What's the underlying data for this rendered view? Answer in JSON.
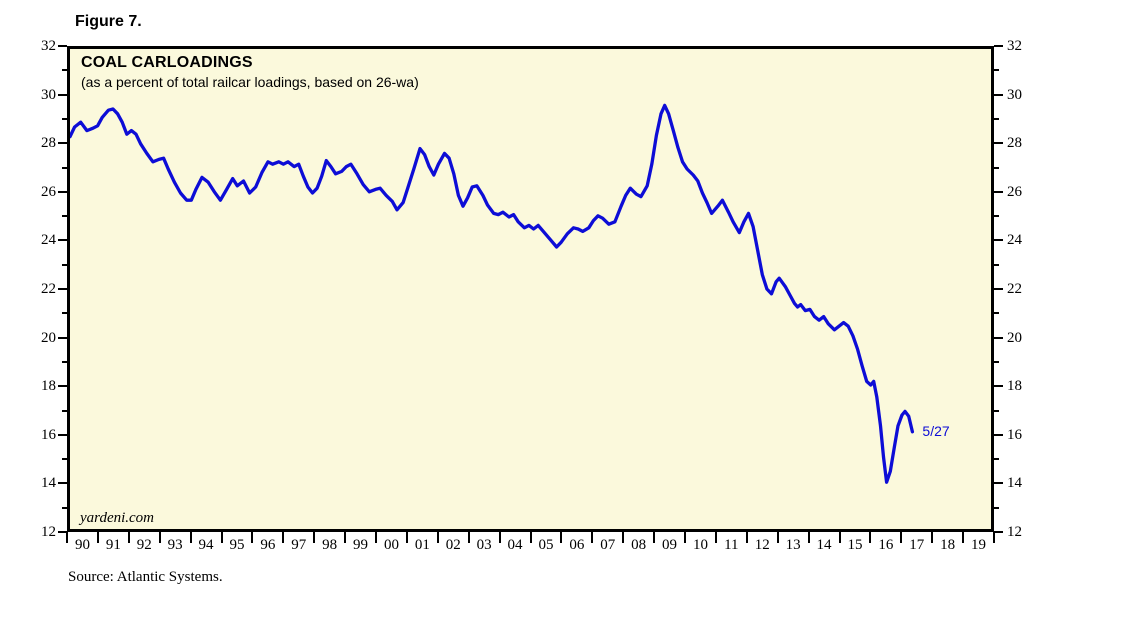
{
  "figure": {
    "label": "Figure 7."
  },
  "chart": {
    "title": "COAL CARLOADINGS",
    "subtitle": "(as a percent of total railcar loadings, based on 26-wa)",
    "watermark": "yardeni.com",
    "last_point_label": "5/27",
    "source": "Source: Atlantic Systems.",
    "colors": {
      "line": "#0d0dd6",
      "plot_background": "#fbf9dc",
      "frame": "#000000",
      "text": "#000000"
    }
  },
  "chart_data": {
    "type": "line",
    "title": "COAL CARLOADINGS",
    "subtitle": "(as a percent of total railcar loadings, based on 26-wa)",
    "xlabel": "",
    "ylabel": "",
    "xlim": [
      1990,
      2020
    ],
    "ylim": [
      12,
      32
    ],
    "grid": false,
    "legend_position": "none",
    "y_ticks_major": [
      32,
      30,
      28,
      26,
      24,
      22,
      20,
      18,
      16,
      14,
      12
    ],
    "y_ticks_minor": [
      31,
      29,
      27,
      25,
      23,
      21,
      19,
      17,
      15,
      13
    ],
    "x_tick_years": [
      1990,
      1991,
      1992,
      1993,
      1994,
      1995,
      1996,
      1997,
      1998,
      1999,
      2000,
      2001,
      2002,
      2003,
      2004,
      2005,
      2006,
      2007,
      2008,
      2009,
      2010,
      2011,
      2012,
      2013,
      2014,
      2015,
      2016,
      2017,
      2018,
      2019,
      2020
    ],
    "x_tick_labels": [
      "90",
      "91",
      "92",
      "93",
      "94",
      "95",
      "96",
      "97",
      "98",
      "99",
      "00",
      "01",
      "02",
      "03",
      "04",
      "05",
      "06",
      "07",
      "08",
      "09",
      "10",
      "11",
      "12",
      "13",
      "14",
      "15",
      "16",
      "17",
      "18",
      "19"
    ],
    "annotations": [
      {
        "text": "5/27",
        "x": 2017.44,
        "y": 16.05
      }
    ],
    "series": [
      {
        "name": "Coal carloadings as percent of total railcar loadings (26-week basis)",
        "points": [
          [
            1990.0,
            28.35
          ],
          [
            1990.15,
            28.75
          ],
          [
            1990.35,
            28.95
          ],
          [
            1990.55,
            28.6
          ],
          [
            1990.75,
            28.7
          ],
          [
            1990.9,
            28.8
          ],
          [
            1991.05,
            29.15
          ],
          [
            1991.25,
            29.45
          ],
          [
            1991.4,
            29.5
          ],
          [
            1991.55,
            29.3
          ],
          [
            1991.7,
            28.95
          ],
          [
            1991.85,
            28.45
          ],
          [
            1992.0,
            28.6
          ],
          [
            1992.15,
            28.45
          ],
          [
            1992.3,
            28.05
          ],
          [
            1992.5,
            27.65
          ],
          [
            1992.7,
            27.3
          ],
          [
            1992.9,
            27.4
          ],
          [
            1993.05,
            27.45
          ],
          [
            1993.2,
            27.0
          ],
          [
            1993.4,
            26.45
          ],
          [
            1993.6,
            26.0
          ],
          [
            1993.8,
            25.7
          ],
          [
            1993.95,
            25.7
          ],
          [
            1994.1,
            26.15
          ],
          [
            1994.3,
            26.65
          ],
          [
            1994.5,
            26.45
          ],
          [
            1994.7,
            26.05
          ],
          [
            1994.9,
            25.7
          ],
          [
            1995.1,
            26.15
          ],
          [
            1995.3,
            26.6
          ],
          [
            1995.45,
            26.3
          ],
          [
            1995.65,
            26.5
          ],
          [
            1995.85,
            26.0
          ],
          [
            1996.05,
            26.25
          ],
          [
            1996.25,
            26.85
          ],
          [
            1996.45,
            27.3
          ],
          [
            1996.6,
            27.2
          ],
          [
            1996.8,
            27.3
          ],
          [
            1996.95,
            27.2
          ],
          [
            1997.1,
            27.3
          ],
          [
            1997.3,
            27.1
          ],
          [
            1997.45,
            27.2
          ],
          [
            1997.6,
            26.7
          ],
          [
            1997.75,
            26.25
          ],
          [
            1997.9,
            26.0
          ],
          [
            1998.05,
            26.2
          ],
          [
            1998.2,
            26.7
          ],
          [
            1998.35,
            27.35
          ],
          [
            1998.5,
            27.1
          ],
          [
            1998.65,
            26.8
          ],
          [
            1998.85,
            26.9
          ],
          [
            1999.0,
            27.1
          ],
          [
            1999.15,
            27.2
          ],
          [
            1999.35,
            26.8
          ],
          [
            1999.55,
            26.35
          ],
          [
            1999.75,
            26.05
          ],
          [
            1999.95,
            26.15
          ],
          [
            2000.1,
            26.2
          ],
          [
            2000.3,
            25.9
          ],
          [
            2000.5,
            25.65
          ],
          [
            2000.65,
            25.3
          ],
          [
            2000.85,
            25.6
          ],
          [
            2001.0,
            26.2
          ],
          [
            2001.2,
            27.0
          ],
          [
            2001.4,
            27.85
          ],
          [
            2001.55,
            27.6
          ],
          [
            2001.7,
            27.1
          ],
          [
            2001.85,
            26.75
          ],
          [
            2002.0,
            27.2
          ],
          [
            2002.2,
            27.65
          ],
          [
            2002.35,
            27.45
          ],
          [
            2002.5,
            26.8
          ],
          [
            2002.65,
            25.9
          ],
          [
            2002.8,
            25.45
          ],
          [
            2002.95,
            25.8
          ],
          [
            2003.1,
            26.25
          ],
          [
            2003.25,
            26.3
          ],
          [
            2003.45,
            25.9
          ],
          [
            2003.6,
            25.5
          ],
          [
            2003.8,
            25.15
          ],
          [
            2003.95,
            25.1
          ],
          [
            2004.1,
            25.2
          ],
          [
            2004.3,
            25.0
          ],
          [
            2004.45,
            25.1
          ],
          [
            2004.6,
            24.8
          ],
          [
            2004.8,
            24.55
          ],
          [
            2004.95,
            24.65
          ],
          [
            2005.1,
            24.5
          ],
          [
            2005.25,
            24.65
          ],
          [
            2005.45,
            24.35
          ],
          [
            2005.65,
            24.05
          ],
          [
            2005.85,
            23.75
          ],
          [
            2006.0,
            23.95
          ],
          [
            2006.2,
            24.3
          ],
          [
            2006.4,
            24.55
          ],
          [
            2006.55,
            24.5
          ],
          [
            2006.7,
            24.4
          ],
          [
            2006.9,
            24.55
          ],
          [
            2007.05,
            24.85
          ],
          [
            2007.2,
            25.05
          ],
          [
            2007.35,
            24.95
          ],
          [
            2007.55,
            24.7
          ],
          [
            2007.75,
            24.8
          ],
          [
            2007.95,
            25.45
          ],
          [
            2008.1,
            25.9
          ],
          [
            2008.25,
            26.2
          ],
          [
            2008.45,
            25.95
          ],
          [
            2008.6,
            25.85
          ],
          [
            2008.8,
            26.3
          ],
          [
            2008.95,
            27.2
          ],
          [
            2009.1,
            28.4
          ],
          [
            2009.25,
            29.3
          ],
          [
            2009.37,
            29.65
          ],
          [
            2009.5,
            29.3
          ],
          [
            2009.65,
            28.6
          ],
          [
            2009.8,
            27.9
          ],
          [
            2009.95,
            27.3
          ],
          [
            2010.1,
            27.0
          ],
          [
            2010.3,
            26.75
          ],
          [
            2010.45,
            26.5
          ],
          [
            2010.6,
            26.0
          ],
          [
            2010.75,
            25.6
          ],
          [
            2010.9,
            25.15
          ],
          [
            2011.1,
            25.45
          ],
          [
            2011.25,
            25.7
          ],
          [
            2011.45,
            25.2
          ],
          [
            2011.6,
            24.8
          ],
          [
            2011.8,
            24.35
          ],
          [
            2011.95,
            24.8
          ],
          [
            2012.1,
            25.15
          ],
          [
            2012.25,
            24.6
          ],
          [
            2012.4,
            23.6
          ],
          [
            2012.55,
            22.6
          ],
          [
            2012.7,
            22.0
          ],
          [
            2012.85,
            21.8
          ],
          [
            2013.0,
            22.3
          ],
          [
            2013.1,
            22.45
          ],
          [
            2013.3,
            22.1
          ],
          [
            2013.45,
            21.75
          ],
          [
            2013.6,
            21.4
          ],
          [
            2013.7,
            21.25
          ],
          [
            2013.8,
            21.35
          ],
          [
            2013.95,
            21.1
          ],
          [
            2014.1,
            21.15
          ],
          [
            2014.25,
            20.85
          ],
          [
            2014.4,
            20.7
          ],
          [
            2014.55,
            20.85
          ],
          [
            2014.7,
            20.55
          ],
          [
            2014.9,
            20.3
          ],
          [
            2015.05,
            20.45
          ],
          [
            2015.2,
            20.6
          ],
          [
            2015.35,
            20.45
          ],
          [
            2015.5,
            20.05
          ],
          [
            2015.65,
            19.5
          ],
          [
            2015.8,
            18.8
          ],
          [
            2015.95,
            18.15
          ],
          [
            2016.08,
            18.0
          ],
          [
            2016.18,
            18.15
          ],
          [
            2016.28,
            17.5
          ],
          [
            2016.4,
            16.3
          ],
          [
            2016.5,
            15.0
          ],
          [
            2016.6,
            13.95
          ],
          [
            2016.72,
            14.4
          ],
          [
            2016.85,
            15.4
          ],
          [
            2016.97,
            16.3
          ],
          [
            2017.1,
            16.75
          ],
          [
            2017.2,
            16.9
          ],
          [
            2017.32,
            16.7
          ],
          [
            2017.44,
            16.05
          ]
        ]
      }
    ]
  }
}
